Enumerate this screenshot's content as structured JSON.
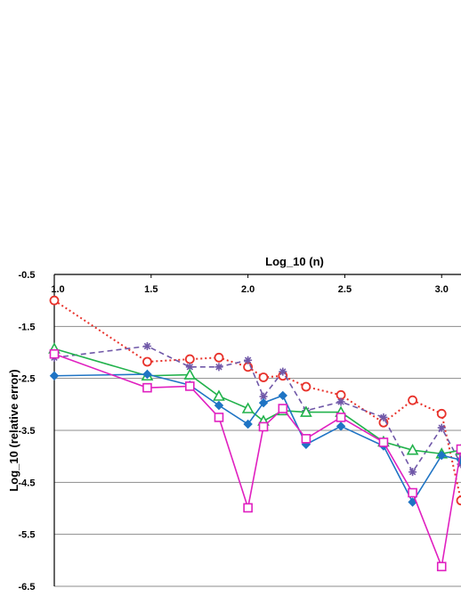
{
  "chart_data": {
    "type": "line",
    "title": "",
    "xlabel": "Log_10 (n)",
    "ylabel": "Log_10 (relative error)",
    "xlim": [
      1.0,
      3.1
    ],
    "ylim": [
      -6.5,
      -0.5
    ],
    "x_ticks": [
      1.0,
      1.5,
      2.0,
      2.5,
      3.0
    ],
    "x_tick_labels": [
      "1.0",
      "1.5",
      "2.0",
      "2.5",
      "3.0"
    ],
    "y_ticks": [
      -0.5,
      -1.5,
      -2.5,
      -3.5,
      -4.5,
      -5.5,
      -6.5
    ],
    "y_tick_labels": [
      "-0.5",
      "-1.5",
      "-2.5",
      "-3.5",
      "-4.5",
      "-5.5",
      "-6.5"
    ],
    "grid": "horizontal",
    "x_axis_position": "top",
    "legend": "none",
    "series": [
      {
        "marker": "circle",
        "style": "dotted",
        "color": "#e8322b",
        "x": [
          1.0,
          1.48,
          1.7,
          1.85,
          2.0,
          2.08,
          2.18,
          2.3,
          2.48,
          2.7,
          2.85,
          3.0,
          3.1
        ],
        "y": [
          -1.0,
          -2.18,
          -2.13,
          -2.1,
          -2.28,
          -2.48,
          -2.45,
          -2.66,
          -2.82,
          -3.35,
          -2.92,
          -3.18,
          -4.85
        ]
      },
      {
        "marker": "asterisk",
        "style": "dashed",
        "color": "#7058a8",
        "x": [
          1.0,
          1.48,
          1.7,
          1.85,
          2.0,
          2.08,
          2.18,
          2.3,
          2.48,
          2.7,
          2.85,
          3.0,
          3.1
        ],
        "y": [
          -2.1,
          -1.88,
          -2.28,
          -2.28,
          -2.15,
          -2.85,
          -2.37,
          -3.12,
          -2.95,
          -3.25,
          -4.3,
          -3.45,
          -4.15
        ]
      },
      {
        "marker": "triangle",
        "style": "solid",
        "color": "#22b24c",
        "x": [
          1.0,
          1.48,
          1.7,
          1.85,
          2.0,
          2.08,
          2.18,
          2.3,
          2.48,
          2.7,
          2.85,
          3.0,
          3.1
        ],
        "y": [
          -1.93,
          -2.45,
          -2.43,
          -2.84,
          -3.08,
          -3.32,
          -3.12,
          -3.15,
          -3.15,
          -3.72,
          -3.88,
          -3.95,
          -3.88
        ]
      },
      {
        "marker": "diamond",
        "style": "solid",
        "color": "#1f74c4",
        "x": [
          1.0,
          1.48,
          1.7,
          1.85,
          2.0,
          2.08,
          2.18,
          2.3,
          2.48,
          2.7,
          2.85,
          3.0,
          3.1
        ],
        "y": [
          -2.45,
          -2.42,
          -2.63,
          -3.02,
          -3.38,
          -2.97,
          -2.83,
          -3.77,
          -3.42,
          -3.8,
          -4.88,
          -3.98,
          -4.07
        ]
      },
      {
        "marker": "square",
        "style": "solid",
        "color": "#e020c0",
        "x": [
          1.0,
          1.48,
          1.7,
          1.85,
          2.0,
          2.08,
          2.18,
          2.3,
          2.48,
          2.7,
          2.85,
          3.0,
          3.1
        ],
        "y": [
          -2.03,
          -2.68,
          -2.65,
          -3.25,
          -4.99,
          -3.43,
          -3.08,
          -3.66,
          -3.25,
          -3.73,
          -4.7,
          -6.12,
          -3.86
        ]
      }
    ]
  }
}
